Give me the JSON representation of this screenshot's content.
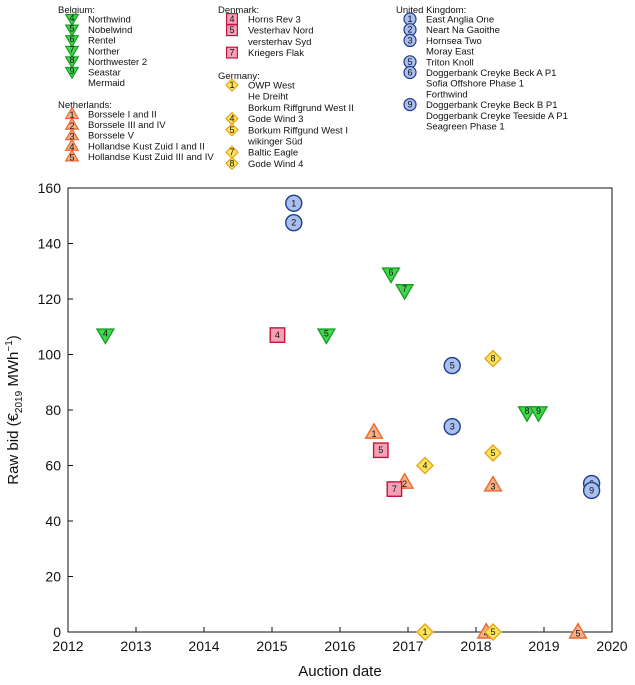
{
  "chart_data": {
    "type": "scatter",
    "xlabel": "Auction date",
    "ylabel": "Raw bid (€2019 MWh−1)",
    "ylabel_parts": {
      "pre": "Raw bid (€",
      "sub": "2019",
      "mid": " MWh",
      "sup": "−1",
      "post": ")"
    },
    "xlim": [
      2012,
      2020
    ],
    "ylim": [
      0,
      160
    ],
    "xticks": [
      2012,
      2013,
      2014,
      2015,
      2016,
      2017,
      2018,
      2019,
      2020
    ],
    "yticks": [
      0,
      20,
      40,
      60,
      80,
      100,
      120,
      140,
      160
    ],
    "xtick_labels": [
      "2012",
      "2013",
      "2014",
      "2015",
      "2016",
      "2017",
      "2018",
      "2019",
      "2020"
    ],
    "ytick_labels": [
      "0",
      "20",
      "40",
      "60",
      "80",
      "100",
      "120",
      "140",
      "160"
    ],
    "groups": [
      {
        "name": "Belgium:",
        "marker": "triangle-down",
        "fill": "#3fd94a",
        "stroke": "#1c9d2a",
        "legend": [
          [
            "4",
            "Northwind"
          ],
          [
            "5",
            "Nobelwind"
          ],
          [
            "6",
            "Rentel"
          ],
          [
            "7",
            "Norther"
          ],
          [
            "8",
            "Northwester 2"
          ],
          [
            "9",
            "Seastar"
          ],
          [
            "",
            "Mermaid"
          ]
        ],
        "points": [
          {
            "x": 2012.55,
            "y": 107,
            "label": "4"
          },
          {
            "x": 2015.8,
            "y": 107,
            "label": "5"
          },
          {
            "x": 2016.75,
            "y": 129,
            "label": "6"
          },
          {
            "x": 2016.95,
            "y": 123,
            "label": "7"
          },
          {
            "x": 2018.75,
            "y": 79,
            "label": "8"
          },
          {
            "x": 2018.92,
            "y": 79,
            "label": "9"
          }
        ]
      },
      {
        "name": "Netherlands:",
        "marker": "triangle-up",
        "fill": "#f7b08a",
        "stroke": "#e8692c",
        "legend": [
          [
            "1",
            "Borssele I and II"
          ],
          [
            "2",
            "Borssele III and IV"
          ],
          [
            "3",
            "Borssele V"
          ],
          [
            "4",
            "Hollandse Kust Zuid I and II"
          ],
          [
            "5",
            "Hollandse Kust Zuid III and IV"
          ]
        ],
        "points": [
          {
            "x": 2016.5,
            "y": 72,
            "label": "1"
          },
          {
            "x": 2016.95,
            "y": 54,
            "label": "2"
          },
          {
            "x": 2018.25,
            "y": 53,
            "label": "3"
          },
          {
            "x": 2018.15,
            "y": 0,
            "label": "4"
          },
          {
            "x": 2019.5,
            "y": 0,
            "label": "5"
          }
        ]
      },
      {
        "name": "Denmark:",
        "marker": "square",
        "fill": "#f7a0b4",
        "stroke": "#c2143e",
        "legend": [
          [
            "4",
            "Horns Rev 3"
          ],
          [
            "5",
            "Vesterhav Nord"
          ],
          [
            "",
            "versterhav Syd"
          ],
          [
            "7",
            "Kriegers Flak"
          ]
        ],
        "points": [
          {
            "x": 2015.08,
            "y": 107,
            "label": "4"
          },
          {
            "x": 2016.6,
            "y": 65.5,
            "label": "5"
          },
          {
            "x": 2016.8,
            "y": 51.5,
            "label": "7"
          }
        ]
      },
      {
        "name": "Germany:",
        "marker": "diamond",
        "fill": "#ffe55c",
        "stroke": "#e8a51c",
        "legend": [
          [
            "1",
            "OWP West"
          ],
          [
            "",
            "He Dreiht"
          ],
          [
            "",
            "Borkum Riffgrund West II"
          ],
          [
            "4",
            "Gode Wind 3"
          ],
          [
            "5",
            "Borkum Riffgund West I"
          ],
          [
            "",
            "wikinger Süd"
          ],
          [
            "7",
            "Baltic Eagle"
          ],
          [
            "8",
            "Gode Wind 4"
          ]
        ],
        "points": [
          {
            "x": 2017.25,
            "y": 0,
            "label": "1"
          },
          {
            "x": 2017.25,
            "y": 60,
            "label": "4"
          },
          {
            "x": 2018.25,
            "y": 64.5,
            "label": "5"
          },
          {
            "x": 2018.25,
            "y": 98.5,
            "label": "8"
          },
          {
            "x": 2018.25,
            "y": 0,
            "label": "5"
          }
        ]
      },
      {
        "name": "United Kingdom:",
        "marker": "circle",
        "fill": "#a9c0ee",
        "stroke": "#1f3c8c",
        "legend": [
          [
            "1",
            "East Anglia One"
          ],
          [
            "2",
            "Neart Na Gaoithe"
          ],
          [
            "3",
            "Hornsea Two"
          ],
          [
            "",
            "Moray East"
          ],
          [
            "5",
            "Triton Knoll"
          ],
          [
            "6",
            "Doggerbank Creyke Beck A P1"
          ],
          [
            "",
            "Sofia Offshore Phase 1"
          ],
          [
            "",
            "Forthwind"
          ],
          [
            "9",
            "Doggerbank Creyke Beck B P1"
          ],
          [
            "",
            "Doggerbank Creyke Teeside A P1"
          ],
          [
            "",
            "Seagreen Phase 1"
          ]
        ],
        "points": [
          {
            "x": 2015.32,
            "y": 154.5,
            "label": "1"
          },
          {
            "x": 2015.32,
            "y": 147.5,
            "label": "2"
          },
          {
            "x": 2017.65,
            "y": 74,
            "label": "3"
          },
          {
            "x": 2017.65,
            "y": 96,
            "label": "5"
          },
          {
            "x": 2019.7,
            "y": 53.5,
            "label": "6"
          },
          {
            "x": 2019.7,
            "y": 51,
            "label": "9"
          }
        ]
      }
    ]
  }
}
